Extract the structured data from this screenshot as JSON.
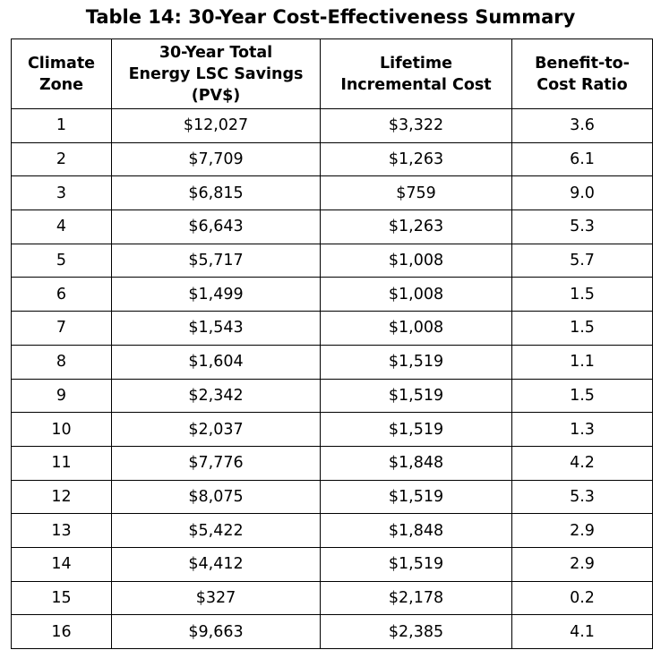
{
  "title": "Table 14: 30-Year Cost-Effectiveness Summary",
  "headers": {
    "zone": [
      "Climate",
      "Zone"
    ],
    "savings": [
      "30-Year Total",
      "Energy LSC Savings",
      "(PV$)"
    ],
    "cost": [
      "Lifetime",
      "Incremental Cost"
    ],
    "ratio": [
      "Benefit-to-",
      "Cost Ratio"
    ]
  },
  "rows": [
    {
      "zone": "1",
      "savings": "$12,027",
      "cost": "$3,322",
      "ratio": "3.6"
    },
    {
      "zone": "2",
      "savings": "$7,709",
      "cost": "$1,263",
      "ratio": "6.1"
    },
    {
      "zone": "3",
      "savings": "$6,815",
      "cost": "$759",
      "ratio": "9.0"
    },
    {
      "zone": "4",
      "savings": "$6,643",
      "cost": "$1,263",
      "ratio": "5.3"
    },
    {
      "zone": "5",
      "savings": "$5,717",
      "cost": "$1,008",
      "ratio": "5.7"
    },
    {
      "zone": "6",
      "savings": "$1,499",
      "cost": "$1,008",
      "ratio": "1.5"
    },
    {
      "zone": "7",
      "savings": "$1,543",
      "cost": "$1,008",
      "ratio": "1.5"
    },
    {
      "zone": "8",
      "savings": "$1,604",
      "cost": "$1,519",
      "ratio": "1.1"
    },
    {
      "zone": "9",
      "savings": "$2,342",
      "cost": "$1,519",
      "ratio": "1.5"
    },
    {
      "zone": "10",
      "savings": "$2,037",
      "cost": "$1,519",
      "ratio": "1.3"
    },
    {
      "zone": "11",
      "savings": "$7,776",
      "cost": "$1,848",
      "ratio": "4.2"
    },
    {
      "zone": "12",
      "savings": "$8,075",
      "cost": "$1,519",
      "ratio": "5.3"
    },
    {
      "zone": "13",
      "savings": "$5,422",
      "cost": "$1,848",
      "ratio": "2.9"
    },
    {
      "zone": "14",
      "savings": "$4,412",
      "cost": "$1,519",
      "ratio": "2.9"
    },
    {
      "zone": "15",
      "savings": "$327",
      "cost": "$2,178",
      "ratio": "0.2"
    },
    {
      "zone": "16",
      "savings": "$9,663",
      "cost": "$2,385",
      "ratio": "4.1"
    }
  ]
}
